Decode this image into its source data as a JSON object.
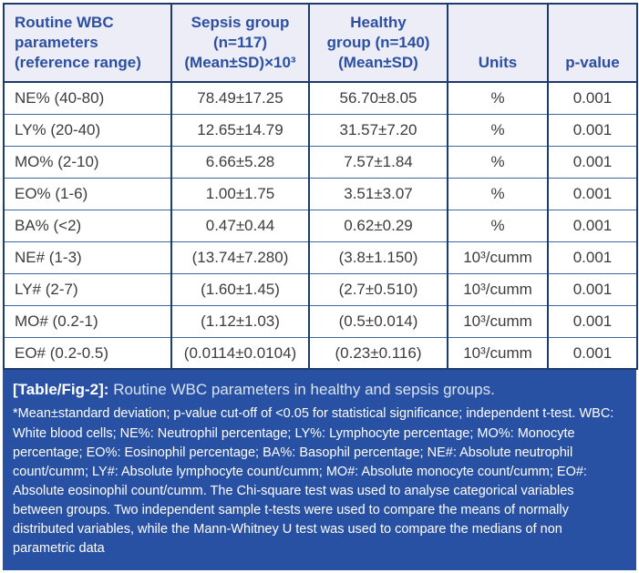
{
  "colors": {
    "border_dark": "#1d3c6d",
    "row_divider": "#41659f",
    "header_bg": "#ecedf7",
    "header_text": "#2b4fa2",
    "body_text": "#3c3c3c",
    "footer_bg": "#2951a3",
    "footer_text": "#ffffff",
    "caption_text": "#d9e4f3"
  },
  "table": {
    "columns": [
      {
        "lines": [
          "Routine WBC",
          "parameters",
          "(reference range)"
        ]
      },
      {
        "lines": [
          "Sepsis group",
          "(n=117)",
          "(Mean±SD)×10³"
        ]
      },
      {
        "lines": [
          "Healthy",
          "group (n=140)",
          "(Mean±SD)"
        ]
      },
      {
        "lines": [
          "Units"
        ]
      },
      {
        "lines": [
          "p-value"
        ]
      }
    ],
    "rows": [
      {
        "param": "NE% (40-80)",
        "sepsis": "78.49±17.25",
        "healthy": "56.70±8.05",
        "units": "%",
        "p_value": "0.001"
      },
      {
        "param": "LY% (20-40)",
        "sepsis": "12.65±14.79",
        "healthy": "31.57±7.20",
        "units": "%",
        "p_value": "0.001"
      },
      {
        "param": "MO% (2-10)",
        "sepsis": "6.66±5.28",
        "healthy": "7.57±1.84",
        "units": "%",
        "p_value": "0.001"
      },
      {
        "param": "EO% (1-6)",
        "sepsis": "1.00±1.75",
        "healthy": "3.51±3.07",
        "units": "%",
        "p_value": "0.001"
      },
      {
        "param": "BA% (<2)",
        "sepsis": "0.47±0.44",
        "healthy": "0.62±0.29",
        "units": "%",
        "p_value": "0.001"
      },
      {
        "param": "NE# (1-3)",
        "sepsis": "(13.74±7.280)",
        "healthy": "(3.8±1.150)",
        "units": "10³/cumm",
        "p_value": "0.001"
      },
      {
        "param": "LY# (2-7)",
        "sepsis": "(1.60±1.45)",
        "healthy": "(2.7±0.510)",
        "units": "10³/cumm",
        "p_value": "0.001"
      },
      {
        "param": "MO# (0.2-1)",
        "sepsis": "(1.12±1.03)",
        "healthy": "(0.5±0.014)",
        "units": "10³/cumm",
        "p_value": "0.001"
      },
      {
        "param": "EO# (0.2-0.5)",
        "sepsis": "(0.0114±0.0104)",
        "healthy": "(0.23±0.116)",
        "units": "10³/cumm",
        "p_value": "0.001"
      }
    ]
  },
  "footer": {
    "caption_label": "[Table/Fig-2]:",
    "caption_text": "Routine WBC parameters in healthy and sepsis groups.",
    "footnote": "*Mean±standard deviation; p-value cut-off of <0.05 for statistical significance; independent t-test. WBC: White blood cells; NE%: Neutrophil percentage; LY%: Lymphocyte percentage; MO%: Monocyte percentage; EO%: Eosinophil percentage; BA%: Basophil percentage; NE#: Absolute neutrophil count/cumm; LY#: Absolute lymphocyte count/cumm; MO#: Absolute monocyte count/cumm; EO#: Absolute eosinophil count/cumm. The Chi-square test was used to analyse categorical variables between groups. Two independent sample t-tests were used to compare the means of normally distributed variables, while the Mann-Whitney U test was used to compare the medians of non parametric data"
  }
}
